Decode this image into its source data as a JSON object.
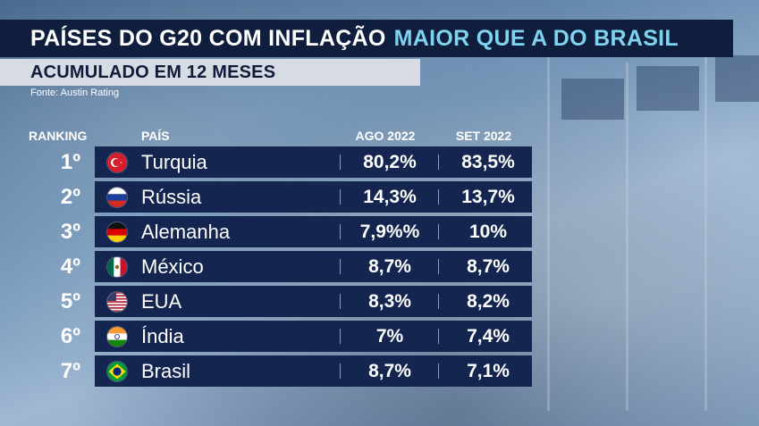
{
  "title": {
    "part1": "PAÍSES DO G20 COM INFLAÇÃO",
    "part2": "MAIOR QUE A DO BRASIL"
  },
  "subtitle": "ACUMULADO EM 12 MESES",
  "source": "Fonte: Austin Rating",
  "headers": {
    "ranking": "RANKING",
    "country": "PAÍS",
    "ago": "AGO 2022",
    "set": "SET 2022"
  },
  "rows": [
    {
      "rank": "1º",
      "country": "Turquia",
      "flag_icon": "turkey-flag-icon",
      "ago": "80,2%",
      "set": "83,5%"
    },
    {
      "rank": "2º",
      "country": "Rússia",
      "flag_icon": "russia-flag-icon",
      "ago": "14,3%",
      "set": "13,7%"
    },
    {
      "rank": "3º",
      "country": "Alemanha",
      "flag_icon": "germany-flag-icon",
      "ago": "7,9%%",
      "set": "10%"
    },
    {
      "rank": "4º",
      "country": "México",
      "flag_icon": "mexico-flag-icon",
      "ago": "8,7%",
      "set": "8,7%"
    },
    {
      "rank": "5º",
      "country": "EUA",
      "flag_icon": "usa-flag-icon",
      "ago": "8,3%",
      "set": "8,2%"
    },
    {
      "rank": "6º",
      "country": "Índia",
      "flag_icon": "india-flag-icon",
      "ago": "7%",
      "set": "7,4%"
    },
    {
      "rank": "7º",
      "country": "Brasil",
      "flag_icon": "brazil-flag-icon",
      "ago": "8,7%",
      "set": "7,1%"
    }
  ],
  "colors": {
    "title_bg": "#101e3e",
    "title_accent": "#7fd3ef",
    "subtitle_bg": "#d7dce4",
    "row_bg": "#142550"
  }
}
